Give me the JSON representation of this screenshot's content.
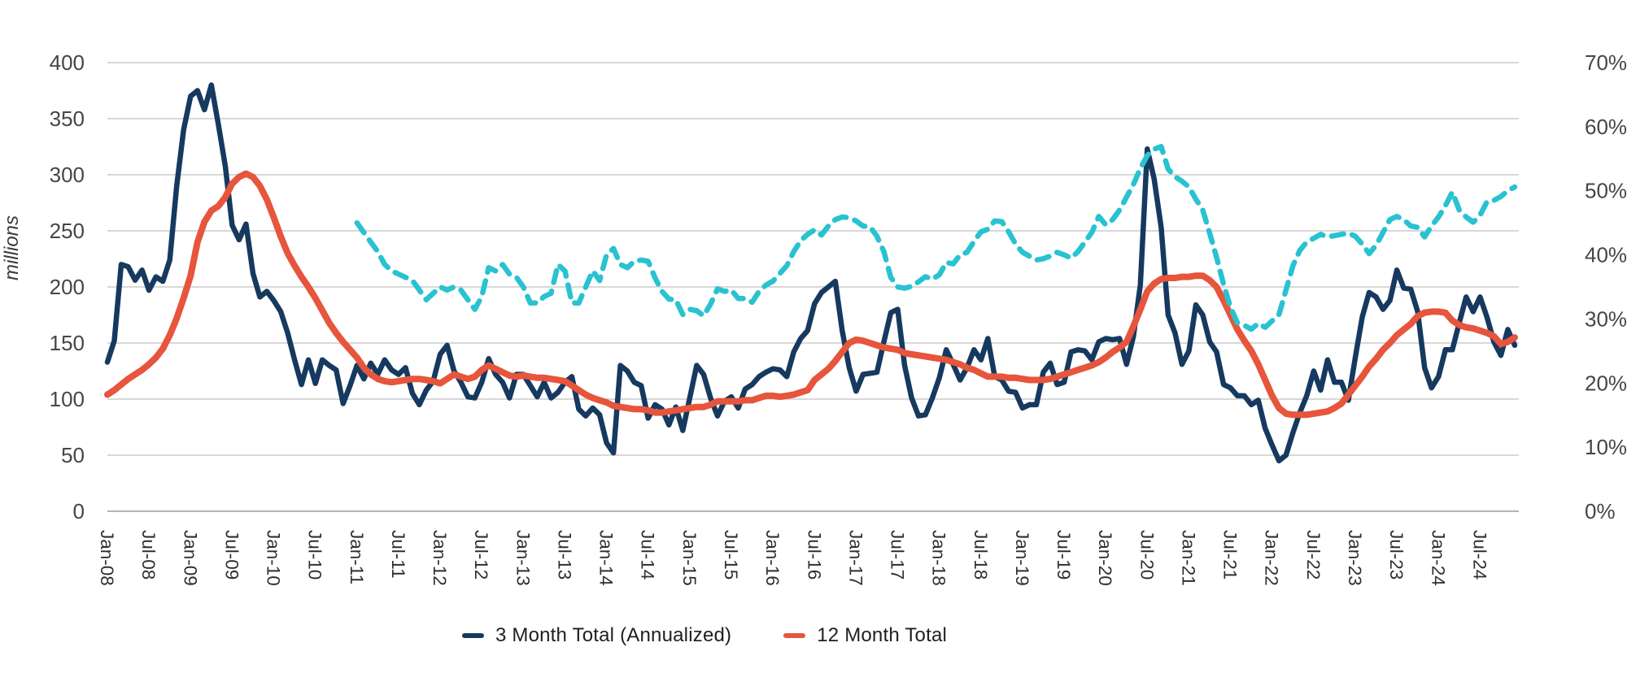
{
  "legend": {
    "items": [
      {
        "label": "3 Month Total (Annualized)"
      },
      {
        "label": "12 Month Total"
      }
    ]
  },
  "chart_data": {
    "type": "line",
    "title": "",
    "x_unit": "month",
    "x_start": "Jan-08",
    "x_end": "Dec-24",
    "grid": "horizontal",
    "legend_position": "bottom-center",
    "x_tick_labels": [
      "Jan-08",
      "Jul-08",
      "Jan-09",
      "Jul-09",
      "Jan-10",
      "Jul-10",
      "Jan-11",
      "Jul-11",
      "Jan-12",
      "Jul-12",
      "Jan-13",
      "Jul-13",
      "Jan-14",
      "Jul-14",
      "Jan-15",
      "Jul-15",
      "Jan-16",
      "Jul-16",
      "Jan-17",
      "Jul-17",
      "Jan-18",
      "Jul-18",
      "Jan-19",
      "Jul-19",
      "Jan-20",
      "Jul-20",
      "Jan-21",
      "Jul-21",
      "Jan-22",
      "Jul-22",
      "Jan-23",
      "Jul-23",
      "Jan-24",
      "Jul-24"
    ],
    "left_axis": {
      "label": "millions",
      "min": 0,
      "max": 400,
      "tick_step": 50,
      "ticks": [
        "0",
        "50",
        "100",
        "150",
        "200",
        "250",
        "300",
        "350",
        "400"
      ]
    },
    "right_axis": {
      "label": "",
      "min": 0,
      "max": 70,
      "tick_step": 10,
      "unit": "%",
      "ticks": [
        "0%",
        "10%",
        "20%",
        "30%",
        "40%",
        "50%",
        "60%",
        "70%"
      ]
    },
    "colors": {
      "navy": "#16395f",
      "orange": "#e6553c",
      "teal": "#29c2d1",
      "gridline": "#cccccc",
      "baseline": "#b3b3b3",
      "axis_text": "#454545",
      "x_text": "#2e2e2e"
    },
    "series": [
      {
        "name": "3 Month Total (Annualized)",
        "axis": "left",
        "style": "solid",
        "color": "#16395f",
        "in_legend": true,
        "start_month_index": 0,
        "values": [
          133,
          152,
          220,
          218,
          206,
          215,
          197,
          209,
          205,
          224,
          290,
          340,
          370,
          375,
          358,
          380,
          345,
          308,
          255,
          242,
          256,
          212,
          191,
          196,
          188,
          178,
          159,
          135,
          113,
          135,
          114,
          135,
          130,
          126,
          96,
          112,
          130,
          118,
          132,
          122,
          135,
          126,
          122,
          128,
          105,
          95,
          108,
          116,
          140,
          148,
          125,
          115,
          102,
          101,
          115,
          136,
          122,
          115,
          101,
          122,
          122,
          112,
          102,
          115,
          101,
          106,
          115,
          120,
          91,
          85,
          92,
          86,
          61,
          52,
          130,
          125,
          115,
          112,
          83,
          95,
          91,
          77,
          93,
          72,
          101,
          130,
          122,
          101,
          85,
          98,
          102,
          92,
          109,
          113,
          120,
          124,
          127,
          126,
          120,
          142,
          154,
          161,
          185,
          195,
          200,
          205,
          161,
          128,
          107,
          122,
          123,
          124,
          151,
          177,
          180,
          130,
          101,
          85,
          86,
          101,
          119,
          144,
          131,
          117,
          128,
          144,
          135,
          154,
          120,
          117,
          107,
          106,
          92,
          95,
          95,
          124,
          132,
          113,
          115,
          142,
          144,
          143,
          135,
          151,
          154,
          153,
          154,
          131,
          156,
          202,
          323,
          296,
          253,
          175,
          159,
          131,
          143,
          184,
          175,
          151,
          142,
          113,
          110,
          103,
          103,
          95,
          99,
          74,
          59,
          45,
          50,
          70,
          88,
          103,
          125,
          108,
          135,
          115,
          115,
          99,
          137,
          173,
          195,
          191,
          180,
          188,
          215,
          199,
          198,
          178,
          128,
          110,
          120,
          144,
          144,
          168,
          191,
          178,
          191,
          173,
          151,
          139,
          162,
          148
        ]
      },
      {
        "name": "12 Month Total",
        "axis": "left",
        "style": "solid",
        "color": "#e6553c",
        "in_legend": true,
        "start_month_index": 0,
        "values": [
          104,
          108,
          113,
          118,
          122,
          126,
          131,
          137,
          145,
          157,
          172,
          190,
          210,
          240,
          258,
          268,
          272,
          280,
          292,
          298,
          301,
          298,
          290,
          278,
          262,
          245,
          230,
          219,
          209,
          200,
          190,
          179,
          168,
          159,
          151,
          144,
          137,
          128,
          122,
          118,
          116,
          115,
          116,
          117,
          118,
          118,
          117,
          116,
          114,
          118,
          122,
          120,
          118,
          120,
          126,
          130,
          127,
          124,
          121,
          120,
          121,
          120,
          119,
          119,
          118,
          117,
          116,
          112,
          108,
          104,
          101,
          99,
          97,
          94,
          93,
          92,
          91,
          91,
          90,
          88,
          88,
          89,
          90,
          91,
          92,
          93,
          93,
          95,
          98,
          98,
          98,
          98,
          99,
          99,
          101,
          103,
          103,
          102,
          103,
          104,
          106,
          108,
          117,
          122,
          127,
          134,
          142,
          150,
          153,
          152,
          150,
          148,
          146,
          145,
          144,
          141,
          140,
          139,
          138,
          137,
          136,
          135,
          133,
          131,
          128,
          126,
          123,
          120,
          120,
          120,
          119,
          119,
          118,
          117,
          117,
          117,
          118,
          120,
          122,
          124,
          126,
          128,
          130,
          133,
          137,
          142,
          146,
          151,
          165,
          180,
          196,
          203,
          207,
          208,
          208,
          209,
          209,
          210,
          210,
          206,
          200,
          188,
          175,
          162,
          152,
          143,
          131,
          117,
          103,
          92,
          87,
          86,
          86,
          86,
          87,
          88,
          89,
          92,
          96,
          104,
          112,
          120,
          129,
          136,
          144,
          150,
          157,
          162,
          167,
          174,
          177,
          178,
          178,
          177,
          170,
          166,
          164,
          163,
          161,
          159,
          156,
          149,
          151,
          155
        ]
      },
      {
        "name": "",
        "axis": "right",
        "style": "dashed",
        "color": "#29c2d1",
        "in_legend": false,
        "start_month_index": 36,
        "values": [
          45.0,
          43.5,
          42.0,
          40.5,
          38.5,
          37.5,
          37.0,
          36.5,
          36.0,
          34.5,
          33.0,
          34.0,
          35.0,
          34.5,
          35.0,
          34.5,
          33.0,
          31.5,
          33.5,
          38.0,
          37.5,
          38.5,
          37.0,
          36.5,
          35.0,
          32.5,
          32.5,
          33.5,
          34.0,
          38.5,
          37.5,
          32.5,
          32.5,
          35.0,
          37.5,
          36.0,
          40.0,
          41.0,
          38.5,
          38.0,
          39.0,
          39.2,
          39.0,
          36.4,
          34.3,
          33.1,
          33.0,
          30.7,
          31.5,
          31.3,
          30.5,
          32.3,
          34.7,
          34.3,
          34.5,
          33.2,
          33.2,
          32.6,
          34.3,
          35.3,
          35.9,
          37.1,
          38.3,
          40.5,
          42.2,
          43.2,
          43.9,
          43.1,
          44.5,
          45.5,
          45.9,
          45.8,
          45.3,
          44.5,
          44.4,
          42.9,
          40.5,
          36.5,
          35.0,
          34.8,
          35.1,
          35.8,
          36.6,
          36.2,
          36.9,
          38.8,
          38.6,
          40.0,
          40.4,
          42.1,
          43.6,
          44.0,
          45.3,
          45.2,
          43.6,
          41.7,
          40.4,
          39.8,
          39.2,
          39.4,
          39.8,
          40.4,
          40.0,
          39.5,
          40.5,
          42.0,
          43.5,
          46.0,
          44.7,
          45.5,
          47.0,
          49.0,
          51.0,
          53.5,
          55.5,
          56.5,
          56.9,
          53.4,
          52.2,
          51.5,
          50.6,
          48.7,
          47.0,
          43.4,
          39.6,
          35.4,
          31.8,
          29.4,
          29.0,
          28.4,
          29.3,
          28.7,
          29.7,
          30.7,
          34.5,
          38.3,
          40.7,
          42.0,
          42.6,
          43.2,
          42.8,
          43.0,
          43.2,
          43.4,
          42.9,
          41.7,
          40.2,
          41.5,
          43.5,
          45.5,
          46.0,
          45.5,
          44.5,
          44.3,
          42.8,
          44.5,
          45.9,
          47.7,
          49.8,
          47.0,
          45.9,
          45.1,
          46.2,
          48.3,
          48.5,
          49.1,
          50.0,
          50.6
        ]
      }
    ]
  }
}
